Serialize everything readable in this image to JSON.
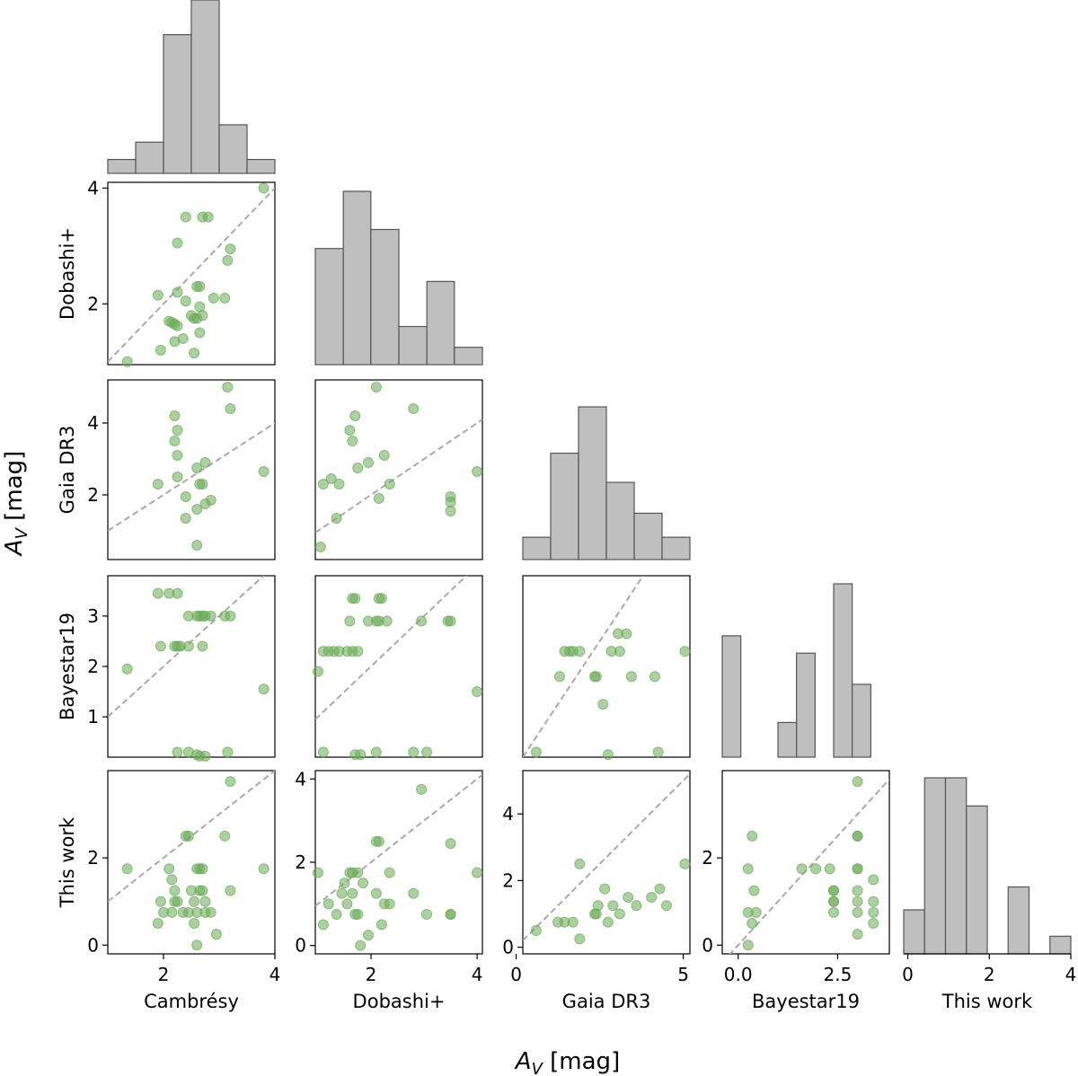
{
  "chart_data": {
    "type": "scatter",
    "title": "",
    "xlabel": "A_V [mag]",
    "ylabel": "A_V [mag]",
    "xlabel_main": "A",
    "xlabel_sub": "V",
    "xlabel_unit": "[mag]",
    "ylabel_main": "A",
    "ylabel_sub": "V",
    "ylabel_unit": "[mag]",
    "variables": [
      "Cambrésy",
      "Dobashi+",
      "Gaia DR3",
      "Bayestar19",
      "This work"
    ],
    "axis_ranges": [
      [
        1.0,
        4.0
      ],
      [
        0.95,
        4.1
      ],
      [
        0.2,
        5.2
      ],
      [
        -0.4,
        3.8
      ],
      [
        -0.1,
        4.0
      ]
    ],
    "ticks": [
      [
        2,
        4
      ],
      [
        2,
        4
      ],
      [
        0,
        5
      ],
      [
        0.0,
        2.5
      ],
      [
        0,
        2,
        4
      ]
    ],
    "tick_labels": [
      [
        "2",
        "4"
      ],
      [
        "2",
        "4"
      ],
      [
        "0",
        "5"
      ],
      [
        "0.0",
        "2.5"
      ],
      [
        "0",
        "2",
        "4"
      ]
    ],
    "y_axis_ranges": [
      null,
      [
        0.95,
        4.1
      ],
      [
        0.2,
        5.2
      ],
      [
        0.2,
        3.8
      ],
      [
        -0.2,
        4.0
      ]
    ],
    "y_ticks": [
      null,
      [
        2,
        4
      ],
      [
        2,
        4
      ],
      [
        1,
        2,
        3
      ],
      [
        0,
        2
      ]
    ],
    "y_tick_labels": [
      null,
      [
        "2",
        "4"
      ],
      [
        "2",
        "4"
      ],
      [
        "1",
        "2",
        "3"
      ],
      [
        "0",
        "2"
      ]
    ],
    "lastrow_y_ticks": [
      [
        0,
        2
      ],
      [
        0,
        2,
        4
      ],
      [
        0,
        2,
        4
      ],
      [
        0,
        2
      ],
      null
    ],
    "lastrow_y_tick_labels": [
      [
        "0",
        "2"
      ],
      [
        "0",
        "2",
        "4"
      ],
      [
        "0",
        "2",
        "4"
      ],
      [
        "0",
        "2"
      ],
      null
    ],
    "lastrow_y_ranges": [
      [
        -0.2,
        4.0
      ],
      [
        -0.2,
        4.2
      ],
      [
        -0.2,
        5.3
      ],
      [
        -0.2,
        4.0
      ],
      null
    ],
    "histograms": [
      {
        "bin_edges": [
          1.0,
          1.5,
          2.0,
          2.5,
          3.0,
          3.5,
          4.0
        ],
        "heights": [
          0.08,
          0.18,
          0.8,
          1.0,
          0.28,
          0.08
        ]
      },
      {
        "bin_edges": [
          0.95,
          1.47,
          1.98,
          2.5,
          3.02,
          3.53,
          4.05
        ],
        "heights": [
          0.67,
          1.0,
          0.78,
          0.22,
          0.48,
          0.1
        ]
      },
      {
        "bin_edges": [
          0.0,
          1.0,
          2.0,
          3.0,
          4.0,
          5.0,
          6.0
        ],
        "heights": [
          0.13,
          0.62,
          0.89,
          0.45,
          0.27,
          0.13
        ]
      },
      {
        "bin_edges": [
          0.0,
          0.4,
          0.8,
          1.2,
          1.6,
          2.0,
          2.4,
          2.8,
          3.2,
          3.6
        ],
        "heights": [
          0.7,
          0.0,
          0.0,
          0.2,
          0.6,
          0.0,
          1.0,
          0.42,
          0.0
        ]
      },
      {
        "bin_edges": [
          0.0,
          0.5,
          1.0,
          1.5,
          2.0,
          2.5,
          3.0,
          3.5,
          4.0
        ],
        "heights": [
          0.25,
          1.0,
          1.0,
          0.84,
          0.0,
          0.38,
          0.0,
          0.1
        ]
      }
    ],
    "pairs": [
      {
        "x_var": "Cambrésy",
        "y_var": "Dobashi+",
        "points": [
          [
            3.8,
            4.0
          ],
          [
            2.4,
            3.5
          ],
          [
            2.7,
            3.5
          ],
          [
            2.8,
            3.5
          ],
          [
            2.25,
            3.05
          ],
          [
            3.2,
            2.95
          ],
          [
            3.15,
            2.75
          ],
          [
            2.65,
            2.3
          ],
          [
            2.6,
            2.3
          ],
          [
            2.25,
            2.2
          ],
          [
            1.9,
            2.15
          ],
          [
            2.4,
            2.05
          ],
          [
            2.9,
            2.1
          ],
          [
            3.1,
            2.1
          ],
          [
            2.65,
            1.95
          ],
          [
            2.5,
            1.8
          ],
          [
            2.1,
            1.7
          ],
          [
            2.15,
            1.68
          ],
          [
            2.2,
            1.65
          ],
          [
            2.25,
            1.62
          ],
          [
            2.55,
            1.75
          ],
          [
            2.6,
            1.75
          ],
          [
            2.7,
            1.8
          ],
          [
            2.35,
            1.4
          ],
          [
            2.65,
            1.5
          ],
          [
            2.2,
            1.35
          ],
          [
            1.95,
            1.2
          ],
          [
            2.55,
            1.15
          ],
          [
            1.35,
            1.0
          ]
        ]
      },
      {
        "x_var": "Cambrésy",
        "y_var": "Gaia DR3",
        "points": [
          [
            2.6,
            0.6
          ],
          [
            2.2,
            4.2
          ],
          [
            2.25,
            3.8
          ],
          [
            2.2,
            3.5
          ],
          [
            3.15,
            5.0
          ],
          [
            3.2,
            4.4
          ],
          [
            2.25,
            3.1
          ],
          [
            2.6,
            2.75
          ],
          [
            2.75,
            2.9
          ],
          [
            2.25,
            2.5
          ],
          [
            1.9,
            2.3
          ],
          [
            2.65,
            2.3
          ],
          [
            2.7,
            2.3
          ],
          [
            3.8,
            2.65
          ],
          [
            2.4,
            1.95
          ],
          [
            2.75,
            1.75
          ],
          [
            2.85,
            1.85
          ],
          [
            2.6,
            1.6
          ],
          [
            2.4,
            1.35
          ]
        ]
      },
      {
        "x_var": "Dobashi+",
        "y_var": "Gaia DR3",
        "points": [
          [
            1.05,
            0.55
          ],
          [
            1.1,
            2.3
          ],
          [
            1.25,
            2.45
          ],
          [
            1.4,
            2.3
          ],
          [
            1.7,
            4.2
          ],
          [
            1.6,
            3.8
          ],
          [
            1.65,
            3.5
          ],
          [
            2.1,
            5.0
          ],
          [
            2.8,
            4.4
          ],
          [
            1.75,
            2.75
          ],
          [
            1.95,
            2.9
          ],
          [
            2.25,
            3.1
          ],
          [
            2.35,
            2.3
          ],
          [
            2.15,
            1.9
          ],
          [
            1.35,
            1.35
          ],
          [
            3.5,
            1.95
          ],
          [
            3.5,
            1.8
          ],
          [
            3.5,
            1.55
          ],
          [
            4.0,
            2.65
          ]
        ]
      },
      {
        "x_var": "Cambrésy",
        "y_var": "Bayestar19",
        "points": [
          [
            1.35,
            1.95
          ],
          [
            1.9,
            3.45
          ],
          [
            2.1,
            3.45
          ],
          [
            2.25,
            3.45
          ],
          [
            2.45,
            3.0
          ],
          [
            2.6,
            3.0
          ],
          [
            2.65,
            3.0
          ],
          [
            2.7,
            3.0
          ],
          [
            2.75,
            3.0
          ],
          [
            2.85,
            3.0
          ],
          [
            3.1,
            3.0
          ],
          [
            3.2,
            3.0
          ],
          [
            1.95,
            2.4
          ],
          [
            2.2,
            2.4
          ],
          [
            2.25,
            2.4
          ],
          [
            2.3,
            2.4
          ],
          [
            2.45,
            2.4
          ],
          [
            2.7,
            2.4
          ],
          [
            3.8,
            1.55
          ],
          [
            2.25,
            0.3
          ],
          [
            2.45,
            0.3
          ],
          [
            2.6,
            0.25
          ],
          [
            2.65,
            0.22
          ],
          [
            2.75,
            0.22
          ],
          [
            3.15,
            0.3
          ]
        ]
      },
      {
        "x_var": "Dobashi+",
        "y_var": "Bayestar19",
        "points": [
          [
            1.0,
            1.9
          ],
          [
            1.1,
            2.3
          ],
          [
            1.2,
            2.3
          ],
          [
            1.3,
            2.3
          ],
          [
            1.4,
            2.3
          ],
          [
            1.55,
            2.3
          ],
          [
            1.65,
            2.3
          ],
          [
            1.75,
            2.3
          ],
          [
            1.6,
            2.9
          ],
          [
            1.65,
            3.35
          ],
          [
            1.7,
            3.35
          ],
          [
            2.15,
            3.35
          ],
          [
            2.2,
            3.35
          ],
          [
            1.95,
            2.9
          ],
          [
            2.1,
            2.9
          ],
          [
            2.15,
            2.9
          ],
          [
            2.3,
            2.9
          ],
          [
            2.95,
            2.9
          ],
          [
            3.45,
            2.9
          ],
          [
            3.5,
            2.9
          ],
          [
            4.0,
            1.5
          ],
          [
            1.1,
            0.3
          ],
          [
            1.7,
            0.25
          ],
          [
            1.8,
            0.25
          ],
          [
            2.1,
            0.3
          ],
          [
            2.8,
            0.3
          ],
          [
            3.05,
            0.3
          ]
        ]
      },
      {
        "x_var": "Gaia DR3",
        "y_var": "Bayestar19",
        "points": [
          [
            0.6,
            0.3
          ],
          [
            1.3,
            1.8
          ],
          [
            1.45,
            2.3
          ],
          [
            1.6,
            2.3
          ],
          [
            1.7,
            2.3
          ],
          [
            1.9,
            2.3
          ],
          [
            2.35,
            1.8
          ],
          [
            2.4,
            1.8
          ],
          [
            2.6,
            1.25
          ],
          [
            2.75,
            0.25
          ],
          [
            2.85,
            2.3
          ],
          [
            3.1,
            2.3
          ],
          [
            3.05,
            2.65
          ],
          [
            3.3,
            2.65
          ],
          [
            3.45,
            1.8
          ],
          [
            4.15,
            1.8
          ],
          [
            4.25,
            0.3
          ],
          [
            5.05,
            2.3
          ]
        ]
      },
      {
        "x_var": "Cambrésy",
        "y_var": "This work",
        "points": [
          [
            3.2,
            3.75
          ],
          [
            2.4,
            2.5
          ],
          [
            2.45,
            2.5
          ],
          [
            3.1,
            2.5
          ],
          [
            1.35,
            1.75
          ],
          [
            2.1,
            1.75
          ],
          [
            2.6,
            1.75
          ],
          [
            2.65,
            1.75
          ],
          [
            2.7,
            1.75
          ],
          [
            3.8,
            1.75
          ],
          [
            2.15,
            1.5
          ],
          [
            2.2,
            1.25
          ],
          [
            2.5,
            1.25
          ],
          [
            2.65,
            1.25
          ],
          [
            2.7,
            1.25
          ],
          [
            3.2,
            1.25
          ],
          [
            1.95,
            1.0
          ],
          [
            2.2,
            1.0
          ],
          [
            2.25,
            1.0
          ],
          [
            2.55,
            1.0
          ],
          [
            2.75,
            1.0
          ],
          [
            2.0,
            0.75
          ],
          [
            2.15,
            0.75
          ],
          [
            2.35,
            0.75
          ],
          [
            2.45,
            0.75
          ],
          [
            2.6,
            0.75
          ],
          [
            2.75,
            0.75
          ],
          [
            2.85,
            0.75
          ],
          [
            1.9,
            0.5
          ],
          [
            2.55,
            0.5
          ],
          [
            2.95,
            0.25
          ],
          [
            2.6,
            0.0
          ]
        ]
      },
      {
        "x_var": "Dobashi+",
        "y_var": "This work",
        "points": [
          [
            2.95,
            3.75
          ],
          [
            2.1,
            2.5
          ],
          [
            2.15,
            2.5
          ],
          [
            3.5,
            2.45
          ],
          [
            1.0,
            1.75
          ],
          [
            1.6,
            1.75
          ],
          [
            1.65,
            1.75
          ],
          [
            1.75,
            1.75
          ],
          [
            2.35,
            1.75
          ],
          [
            4.0,
            1.75
          ],
          [
            1.5,
            1.5
          ],
          [
            1.85,
            1.5
          ],
          [
            1.45,
            1.25
          ],
          [
            1.65,
            1.25
          ],
          [
            2.1,
            1.25
          ],
          [
            2.8,
            1.25
          ],
          [
            1.2,
            1.0
          ],
          [
            1.55,
            1.0
          ],
          [
            2.25,
            1.0
          ],
          [
            2.35,
            1.0
          ],
          [
            3.05,
            0.75
          ],
          [
            3.5,
            0.75
          ],
          [
            3.5,
            0.75
          ],
          [
            1.35,
            0.75
          ],
          [
            1.7,
            0.75
          ],
          [
            1.75,
            0.75
          ],
          [
            1.1,
            0.5
          ],
          [
            2.2,
            0.5
          ],
          [
            1.95,
            0.25
          ],
          [
            1.8,
            0.0
          ]
        ]
      },
      {
        "x_var": "Gaia DR3",
        "y_var": "This work",
        "points": [
          [
            0.6,
            0.5
          ],
          [
            1.25,
            0.75
          ],
          [
            1.45,
            0.75
          ],
          [
            1.7,
            0.75
          ],
          [
            1.9,
            2.5
          ],
          [
            1.9,
            0.25
          ],
          [
            2.35,
            1.0
          ],
          [
            2.4,
            1.0
          ],
          [
            2.45,
            1.25
          ],
          [
            2.65,
            1.75
          ],
          [
            2.75,
            0.75
          ],
          [
            2.9,
            1.25
          ],
          [
            3.1,
            1.0
          ],
          [
            3.35,
            1.5
          ],
          [
            3.6,
            1.25
          ],
          [
            4.05,
            1.5
          ],
          [
            4.3,
            1.75
          ],
          [
            4.5,
            1.25
          ],
          [
            5.05,
            2.5
          ]
        ]
      },
      {
        "x_var": "Bayestar19",
        "y_var": "This work",
        "points": [
          [
            0.25,
            0.0
          ],
          [
            0.25,
            1.75
          ],
          [
            0.25,
            0.75
          ],
          [
            0.35,
            0.5
          ],
          [
            0.35,
            2.5
          ],
          [
            0.4,
            1.25
          ],
          [
            0.45,
            0.75
          ],
          [
            1.6,
            1.75
          ],
          [
            1.95,
            1.75
          ],
          [
            2.3,
            1.75
          ],
          [
            2.4,
            1.25
          ],
          [
            2.4,
            1.0
          ],
          [
            2.4,
            1.25
          ],
          [
            2.4,
            0.75
          ],
          [
            2.4,
            1.0
          ],
          [
            3.0,
            3.75
          ],
          [
            3.0,
            2.5
          ],
          [
            3.0,
            1.75
          ],
          [
            3.0,
            1.25
          ],
          [
            3.0,
            1.0
          ],
          [
            3.0,
            0.75
          ],
          [
            3.0,
            0.25
          ],
          [
            3.0,
            1.75
          ],
          [
            3.0,
            2.5
          ],
          [
            3.4,
            1.5
          ],
          [
            3.4,
            1.0
          ],
          [
            3.4,
            0.75
          ],
          [
            3.4,
            0.5
          ]
        ]
      }
    ],
    "line": "y = x (dashed)",
    "colors": {
      "hist_fill": "#bfbfbf",
      "hist_edge": "#555555",
      "point": "#6aaa55",
      "line": "#aaaaaa"
    },
    "grid": false
  }
}
